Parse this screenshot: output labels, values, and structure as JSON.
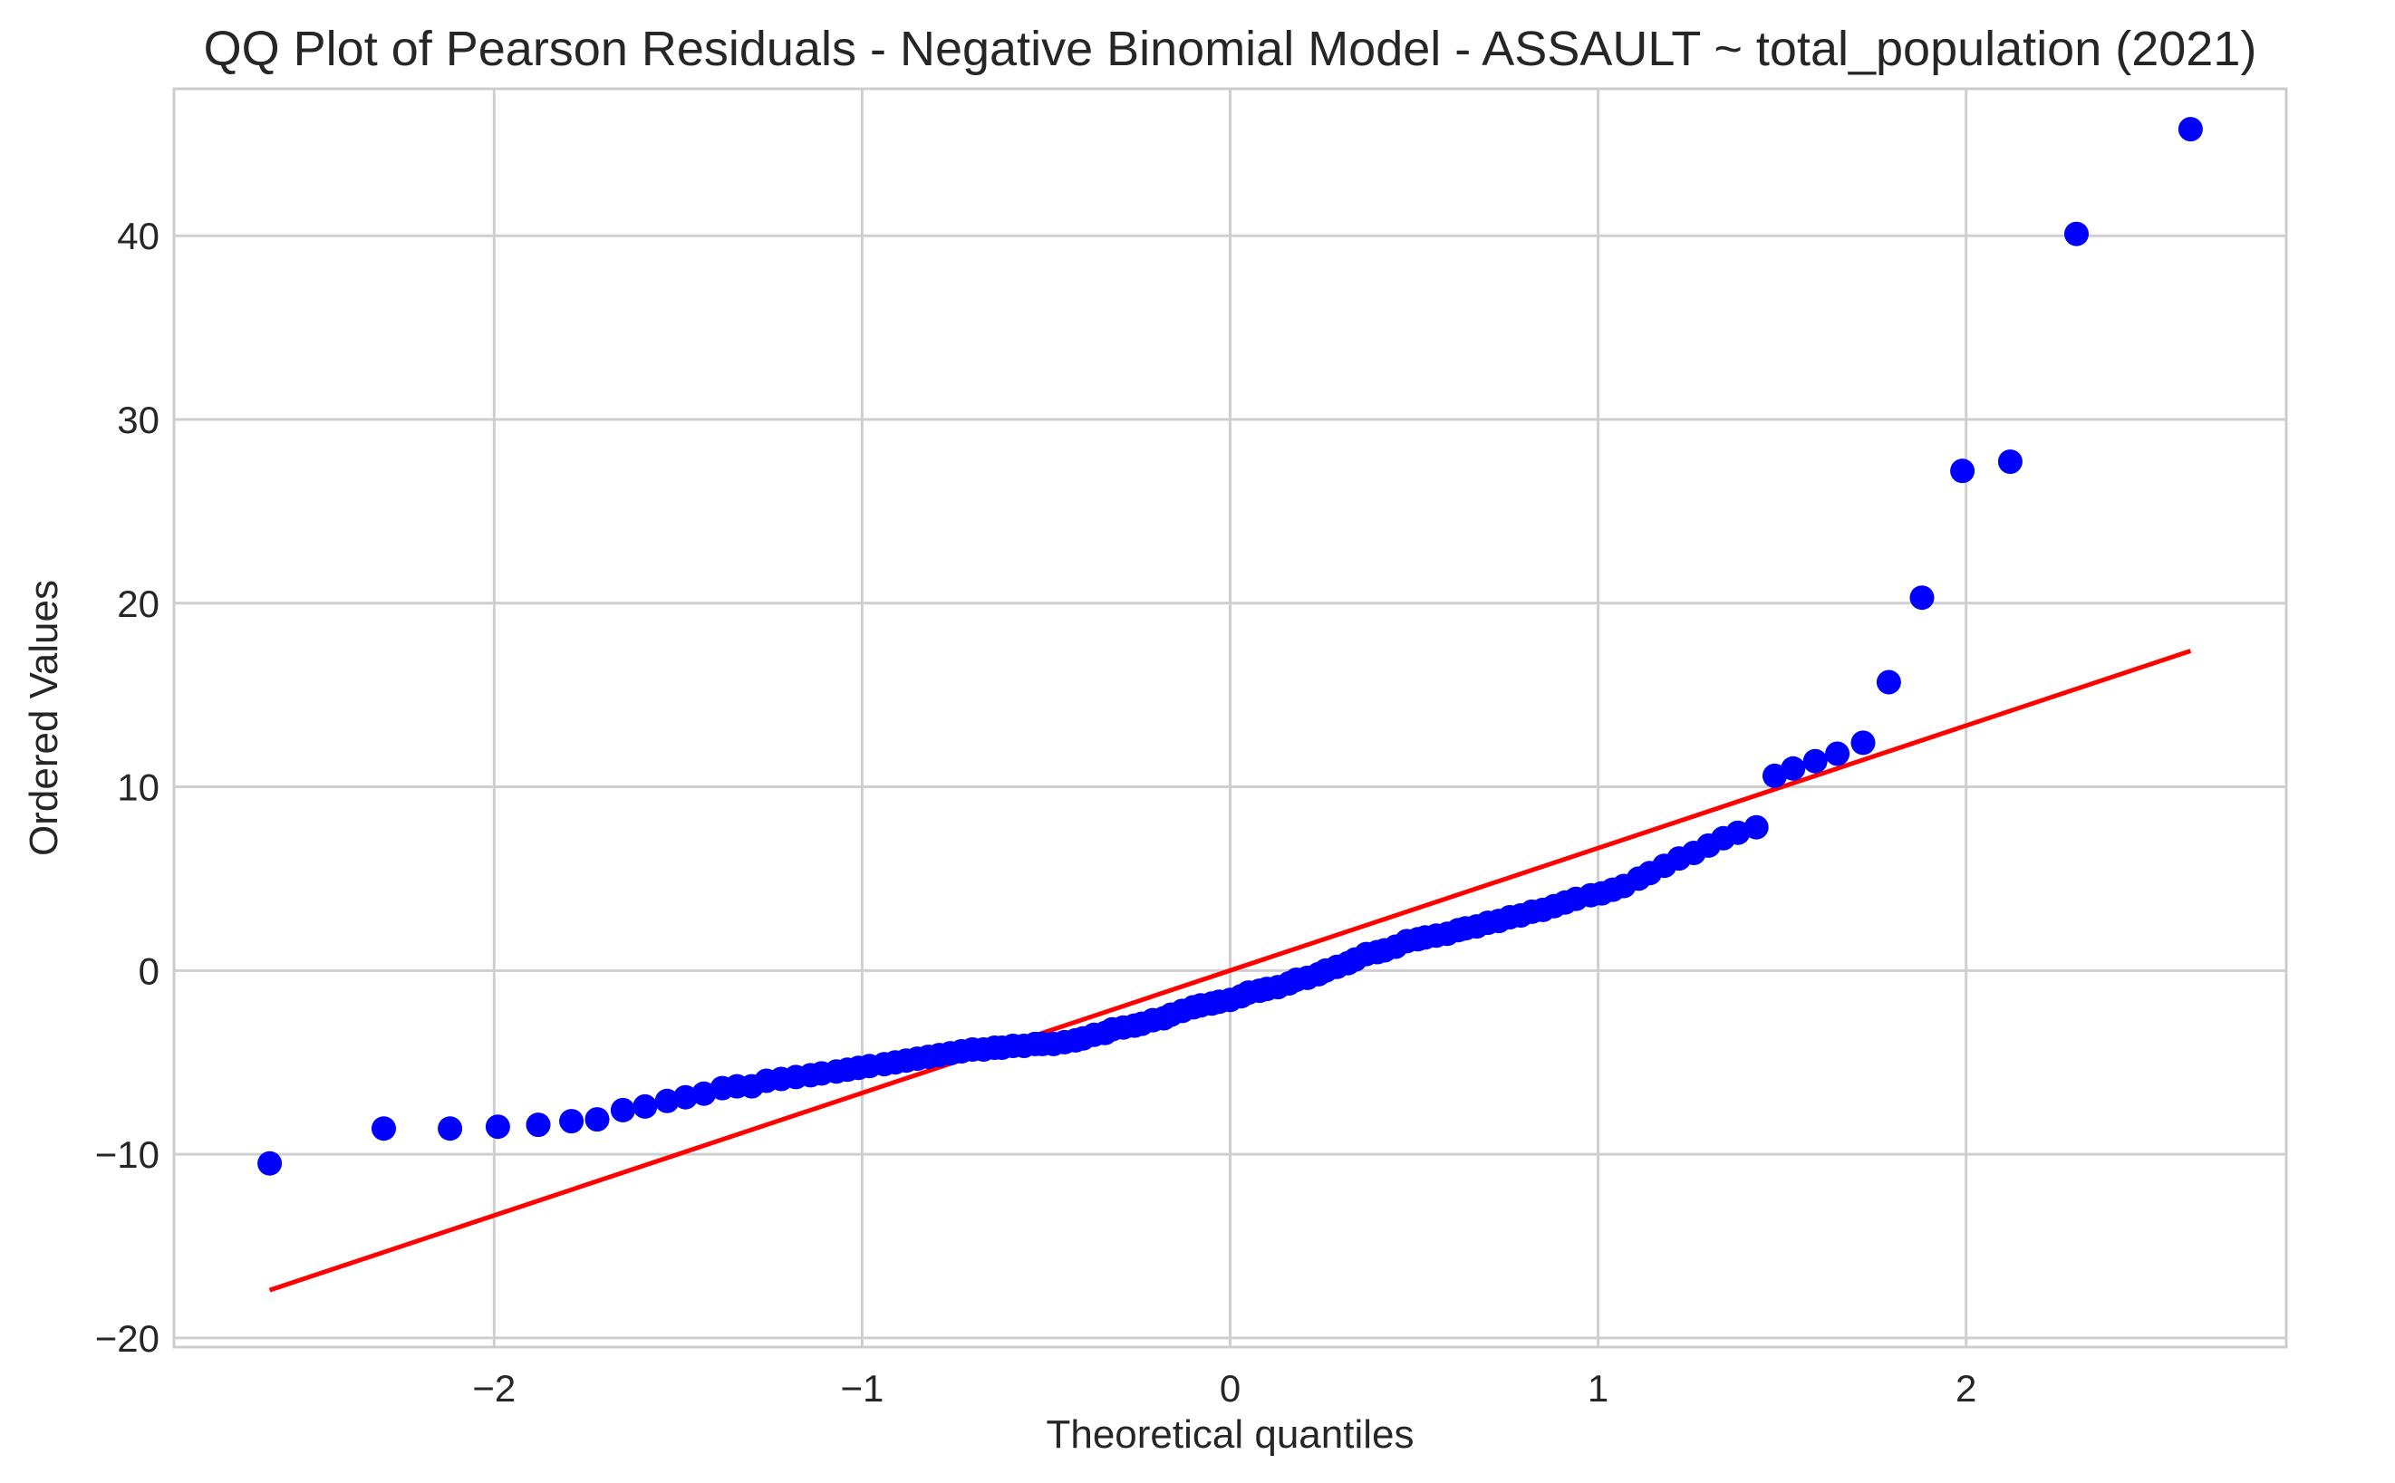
{
  "chart_data": {
    "type": "scatter",
    "title": "QQ Plot of Pearson Residuals - Negative Binomial Model - ASSAULT ~ total_population (2021)",
    "xlabel": "Theoretical quantiles",
    "ylabel": "Ordered Values",
    "xlim": [
      -2.87,
      2.87
    ],
    "ylim": [
      -20.5,
      48.0
    ],
    "xticks": [
      -2,
      -1,
      0,
      1,
      2
    ],
    "xtick_labels": [
      "−2",
      "−1",
      "0",
      "1",
      "2"
    ],
    "yticks": [
      -20,
      -10,
      0,
      10,
      20,
      30,
      40
    ],
    "ytick_labels": [
      "−20",
      "−10",
      "0",
      "10",
      "20",
      "30",
      "40"
    ],
    "grid": true,
    "series": [
      {
        "kind": "points",
        "color": "#0000ff",
        "x": [
          -2.61,
          -2.3,
          -2.12,
          -1.99,
          -1.88,
          -1.79,
          -1.72,
          -1.65,
          -1.59,
          -1.53,
          -1.48,
          -1.43,
          -1.38,
          -1.34,
          -1.3,
          -1.26,
          -1.22,
          -1.18,
          -1.14,
          -1.11,
          -1.07,
          -1.04,
          -1.01,
          -0.98,
          -0.94,
          -0.91,
          -0.88,
          -0.85,
          -0.82,
          -0.79,
          -0.76,
          -0.73,
          -0.7,
          -0.67,
          -0.64,
          -0.62,
          -0.59,
          -0.56,
          -0.53,
          -0.51,
          -0.48,
          -0.45,
          -0.42,
          -0.4,
          -0.37,
          -0.34,
          -0.32,
          -0.29,
          -0.26,
          -0.24,
          -0.21,
          -0.18,
          -0.16,
          -0.13,
          -0.1,
          -0.08,
          -0.05,
          -0.03,
          0.0,
          0.03,
          0.05,
          0.08,
          0.1,
          0.13,
          0.16,
          0.18,
          0.21,
          0.24,
          0.26,
          0.29,
          0.32,
          0.34,
          0.37,
          0.4,
          0.42,
          0.45,
          0.48,
          0.51,
          0.53,
          0.56,
          0.59,
          0.62,
          0.64,
          0.67,
          0.7,
          0.73,
          0.76,
          0.79,
          0.82,
          0.85,
          0.88,
          0.91,
          0.94,
          0.98,
          1.01,
          1.04,
          1.07,
          1.11,
          1.14,
          1.18,
          1.22,
          1.26,
          1.3,
          1.34,
          1.38,
          1.43,
          1.48,
          1.53,
          1.59,
          1.65,
          1.72,
          1.79,
          1.88,
          1.99,
          2.12,
          2.3,
          2.61
        ],
        "y": [
          -10.5,
          -8.6,
          -8.6,
          -8.5,
          -8.4,
          -8.2,
          -8.1,
          -7.6,
          -7.4,
          -7.1,
          -6.9,
          -6.7,
          -6.4,
          -6.3,
          -6.3,
          -6.0,
          -5.9,
          -5.8,
          -5.7,
          -5.6,
          -5.5,
          -5.4,
          -5.3,
          -5.2,
          -5.1,
          -5.0,
          -4.9,
          -4.8,
          -4.7,
          -4.6,
          -4.5,
          -4.4,
          -4.3,
          -4.3,
          -4.2,
          -4.2,
          -4.1,
          -4.1,
          -4.0,
          -4.0,
          -4.0,
          -3.9,
          -3.8,
          -3.7,
          -3.5,
          -3.4,
          -3.2,
          -3.1,
          -3.0,
          -2.9,
          -2.7,
          -2.6,
          -2.4,
          -2.2,
          -2.0,
          -1.9,
          -1.8,
          -1.7,
          -1.6,
          -1.4,
          -1.2,
          -1.1,
          -1.0,
          -0.9,
          -0.7,
          -0.5,
          -0.4,
          -0.2,
          0.0,
          0.2,
          0.4,
          0.6,
          0.9,
          1.0,
          1.1,
          1.3,
          1.6,
          1.7,
          1.8,
          1.9,
          2.0,
          2.2,
          2.3,
          2.4,
          2.6,
          2.7,
          2.9,
          3.0,
          3.2,
          3.3,
          3.5,
          3.7,
          3.9,
          4.1,
          4.2,
          4.4,
          4.6,
          5.0,
          5.3,
          5.7,
          6.1,
          6.4,
          6.8,
          7.2,
          7.5,
          7.8,
          10.6,
          11.0,
          11.4,
          11.8,
          12.4,
          15.7,
          20.3,
          27.2,
          27.7,
          40.1,
          45.8
        ]
      },
      {
        "kind": "fit-line",
        "color": "#ff0000",
        "x": [
          -2.61,
          2.61
        ],
        "y": [
          -17.4,
          17.4
        ]
      }
    ]
  }
}
